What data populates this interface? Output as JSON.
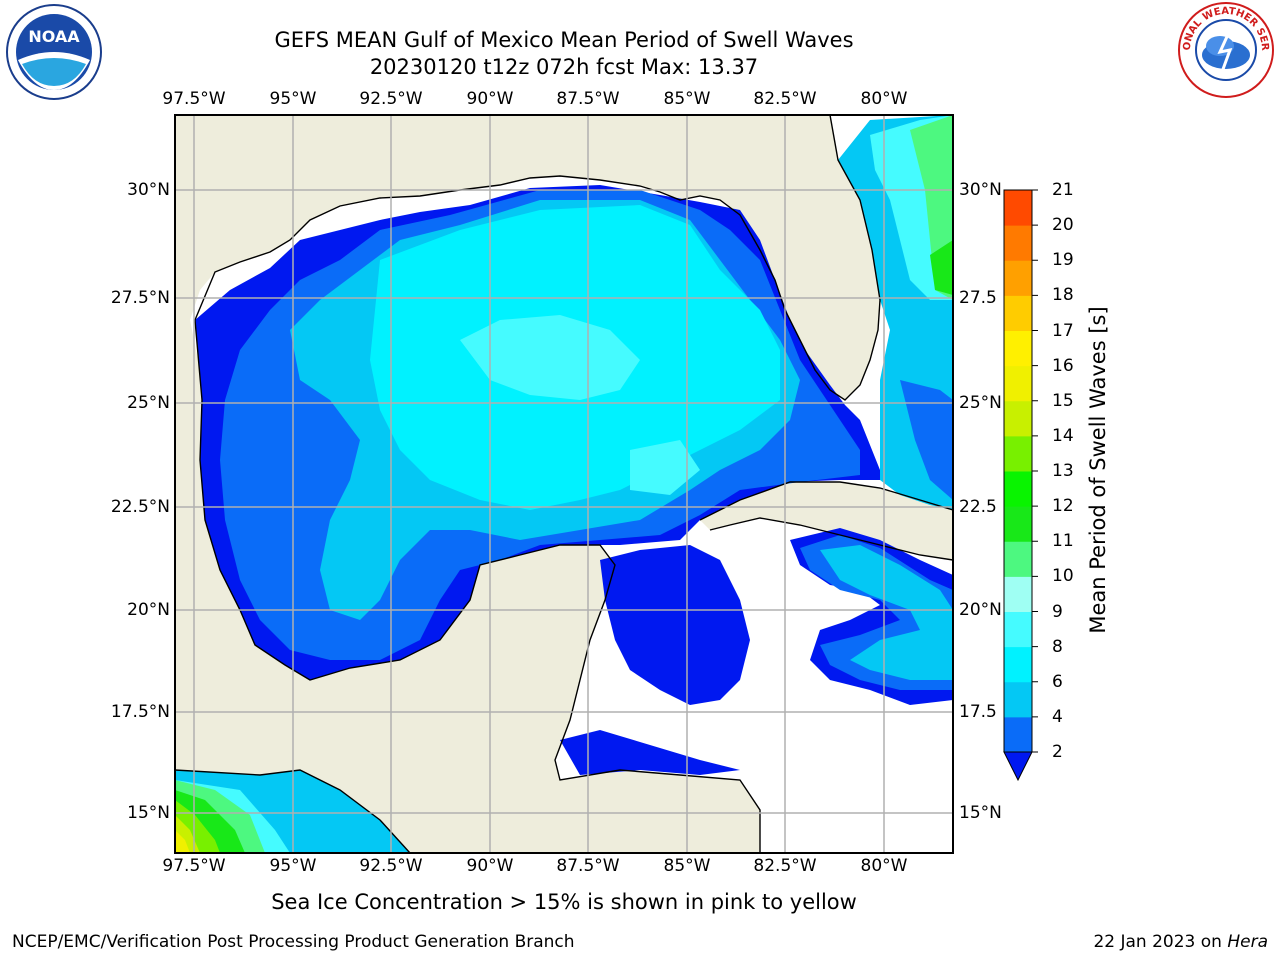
{
  "header": {
    "title_line1": "GEFS MEAN Gulf of Mexico Mean Period of Swell Waves",
    "title_line2": "20230120 t12z 072h fcst   Max: 13.37"
  },
  "logos": {
    "left": "noaa-logo",
    "right": "nws-logo"
  },
  "map": {
    "lon_labels": [
      "97.5°W",
      "95°W",
      "92.5°W",
      "90°W",
      "87.5°W",
      "85°W",
      "82.5°W",
      "80°W"
    ],
    "lat_labels": [
      "30°N",
      "27.5°N",
      "25°N",
      "22.5°N",
      "20°N",
      "17.5°N",
      "15°N"
    ],
    "lat_labels_right": [
      "30°N",
      "27.5",
      "25°N",
      "22.5",
      "20°N",
      "17.5",
      "15°N"
    ],
    "lon_range": [
      -98.0,
      -78.3
    ],
    "lat_range": [
      14.0,
      31.8
    ],
    "land_color": "#eeeddc",
    "grid_color": "#b0b0b0"
  },
  "colorbar": {
    "title": "Mean Period of Swell Waves [s]",
    "ticks": [
      "2",
      "4",
      "6",
      "8",
      "9",
      "10",
      "11",
      "12",
      "13",
      "14",
      "15",
      "16",
      "17",
      "18",
      "19",
      "20",
      "21"
    ],
    "colors": [
      "#0a6cf8",
      "#04c8f4",
      "#00f2ff",
      "#45fbff",
      "#9ffff3",
      "#4df880",
      "#18e818",
      "#09f400",
      "#78f000",
      "#c8f000",
      "#f0f000",
      "#fff000",
      "#ffcc00",
      "#ffa000",
      "#ff7a00",
      "#ff4a00",
      "#ff2000"
    ],
    "under_color": "#0018f0"
  },
  "footer": {
    "note": "Sea Ice Concentration > 15% is shown in pink to yellow",
    "credit_left": "NCEP/EMC/Verification Post Processing Product Generation Branch",
    "credit_right_date": "22 Jan 2023 on ",
    "credit_right_host": "Hera"
  }
}
